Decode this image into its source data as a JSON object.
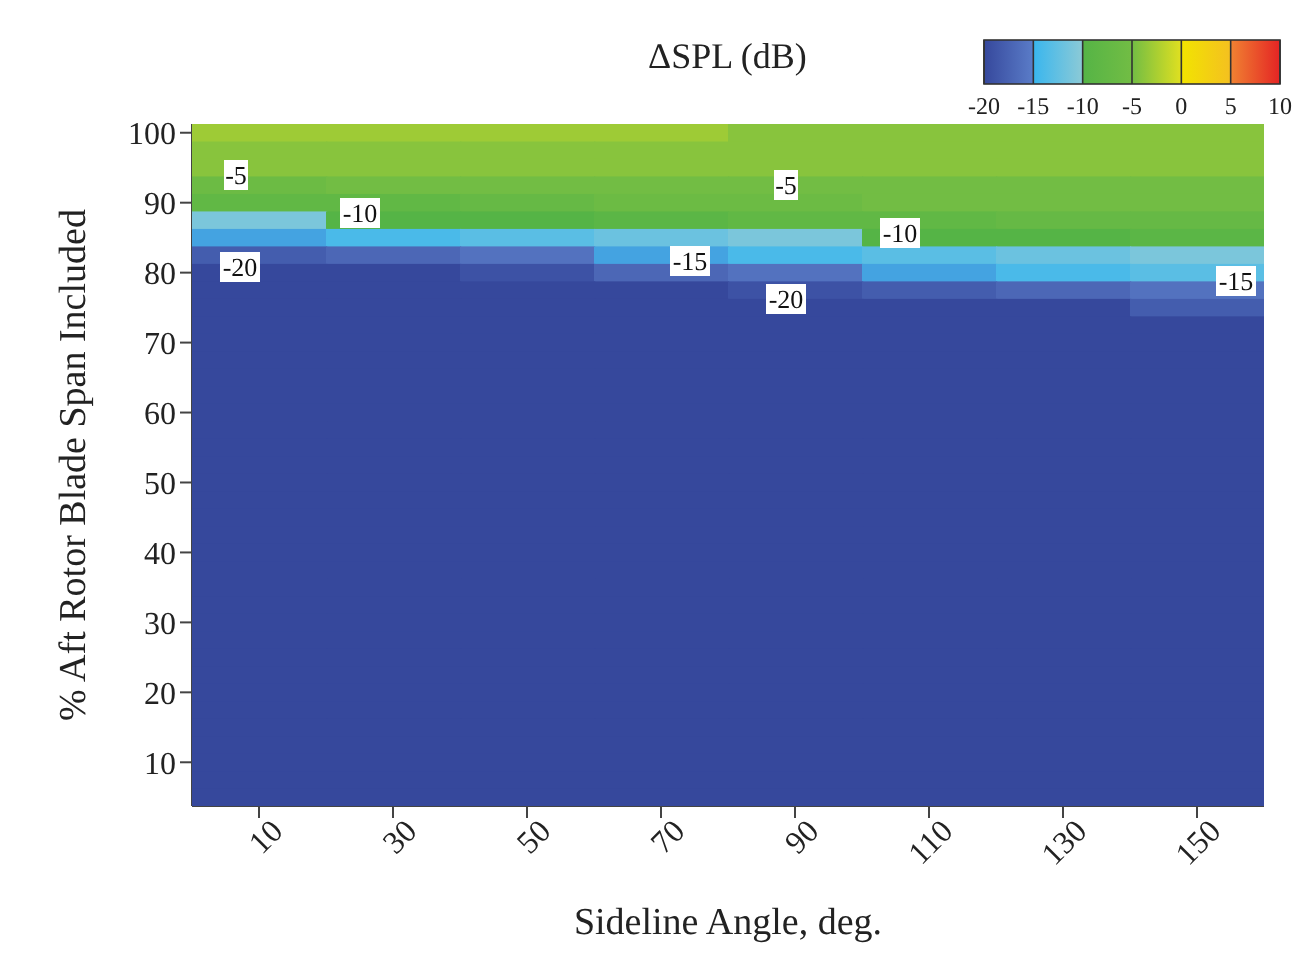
{
  "chart_data": {
    "type": "heatmap",
    "xlabel": "Sideline Angle, deg.",
    "ylabel": "% Aft Rotor Blade Span Included",
    "clabel": "ΔSPL (dB)",
    "categories": [
      "10",
      "30",
      "50",
      "70",
      "90",
      "110",
      "130",
      "150"
    ],
    "y_categories": [
      "100",
      null,
      null,
      null,
      "90",
      null,
      null,
      null,
      "80",
      null,
      null,
      null,
      "70",
      null,
      null,
      null,
      "60",
      null,
      null,
      null,
      "50",
      null,
      null,
      null,
      "40",
      null,
      null,
      null,
      "30",
      null,
      null,
      null,
      "20",
      null,
      null,
      null,
      "10",
      null,
      null
    ],
    "cells": [
      [
        -3,
        -3,
        -3,
        -3,
        -4,
        -4,
        -4,
        -4
      ],
      [
        -4,
        -4,
        -4,
        -4,
        -4,
        -4,
        -4,
        -4
      ],
      [
        -4,
        -4,
        -4,
        -4,
        -4,
        -4,
        -4,
        -4
      ],
      [
        -6,
        -5,
        -5,
        -5,
        -5,
        -5,
        -5,
        -5
      ],
      [
        -8,
        -8,
        -7,
        -6,
        -6,
        -5,
        -5,
        -5
      ],
      [
        -11,
        -10,
        -10,
        -9,
        -8,
        -8,
        -7,
        -7
      ],
      [
        -15,
        -14,
        -13,
        -12,
        -11,
        -10,
        -10,
        -9
      ],
      [
        -18,
        -17,
        -16,
        -15,
        -14,
        -13,
        -12,
        -11
      ],
      [
        -20,
        -20,
        -19,
        -17,
        -16,
        -15,
        -14,
        -13
      ],
      [
        -20,
        -20,
        -20,
        -20,
        -19,
        -18,
        -17,
        -16
      ],
      [
        -20,
        -20,
        -20,
        -20,
        -20,
        -20,
        -20,
        -18
      ],
      [
        -20,
        -20,
        -20,
        -20,
        -20,
        -20,
        -20,
        -20
      ],
      [
        -20,
        -20,
        -20,
        -20,
        -20,
        -20,
        -20,
        -20
      ],
      [
        -20,
        -20,
        -20,
        -20,
        -20,
        -20,
        -20,
        -20
      ],
      [
        -20,
        -20,
        -20,
        -20,
        -20,
        -20,
        -20,
        -20
      ],
      [
        -20,
        -20,
        -20,
        -20,
        -20,
        -20,
        -20,
        -20
      ],
      [
        -20,
        -20,
        -20,
        -20,
        -20,
        -20,
        -20,
        -20
      ],
      [
        -20,
        -20,
        -20,
        -20,
        -20,
        -20,
        -20,
        -20
      ],
      [
        -20,
        -20,
        -20,
        -20,
        -20,
        -20,
        -20,
        -20
      ],
      [
        -20,
        -20,
        -20,
        -20,
        -20,
        -20,
        -20,
        -20
      ],
      [
        -20,
        -20,
        -20,
        -20,
        -20,
        -20,
        -20,
        -20
      ],
      [
        -20,
        -20,
        -20,
        -20,
        -20,
        -20,
        -20,
        -20
      ],
      [
        -20,
        -20,
        -20,
        -20,
        -20,
        -20,
        -20,
        -20
      ],
      [
        -20,
        -20,
        -20,
        -20,
        -20,
        -20,
        -20,
        -20
      ],
      [
        -20,
        -20,
        -20,
        -20,
        -20,
        -20,
        -20,
        -20
      ],
      [
        -20,
        -20,
        -20,
        -20,
        -20,
        -20,
        -20,
        -20
      ],
      [
        -20,
        -20,
        -20,
        -20,
        -20,
        -20,
        -20,
        -20
      ],
      [
        -20,
        -20,
        -20,
        -20,
        -20,
        -20,
        -20,
        -20
      ],
      [
        -20,
        -20,
        -20,
        -20,
        -20,
        -20,
        -20,
        -20
      ],
      [
        -20,
        -20,
        -20,
        -20,
        -20,
        -20,
        -20,
        -20
      ],
      [
        -20,
        -20,
        -20,
        -20,
        -20,
        -20,
        -20,
        -20
      ],
      [
        -20,
        -20,
        -20,
        -20,
        -20,
        -20,
        -20,
        -20
      ],
      [
        -20,
        -20,
        -20,
        -20,
        -20,
        -20,
        -20,
        -20
      ],
      [
        -20,
        -20,
        -20,
        -20,
        -20,
        -20,
        -20,
        -20
      ],
      [
        -20,
        -20,
        -20,
        -20,
        -20,
        -20,
        -20,
        -20
      ],
      [
        -20,
        -20,
        -20,
        -20,
        -20,
        -20,
        -20,
        -20
      ],
      [
        -20,
        -20,
        -20,
        -20,
        -20,
        -20,
        -20,
        -20
      ],
      [
        -20,
        -20,
        -20,
        -20,
        -20,
        -20,
        -20,
        -20
      ],
      [
        -20,
        -20,
        -20,
        -20,
        -20,
        -20,
        -20,
        -20
      ]
    ],
    "clim": [
      -20,
      10
    ],
    "cticks": [
      -20,
      -15,
      -10,
      -5,
      0,
      5,
      10
    ],
    "annotations": [
      "-5",
      "-10",
      "-20",
      "-5",
      "-10",
      "-15",
      "-20",
      "-15"
    ]
  }
}
